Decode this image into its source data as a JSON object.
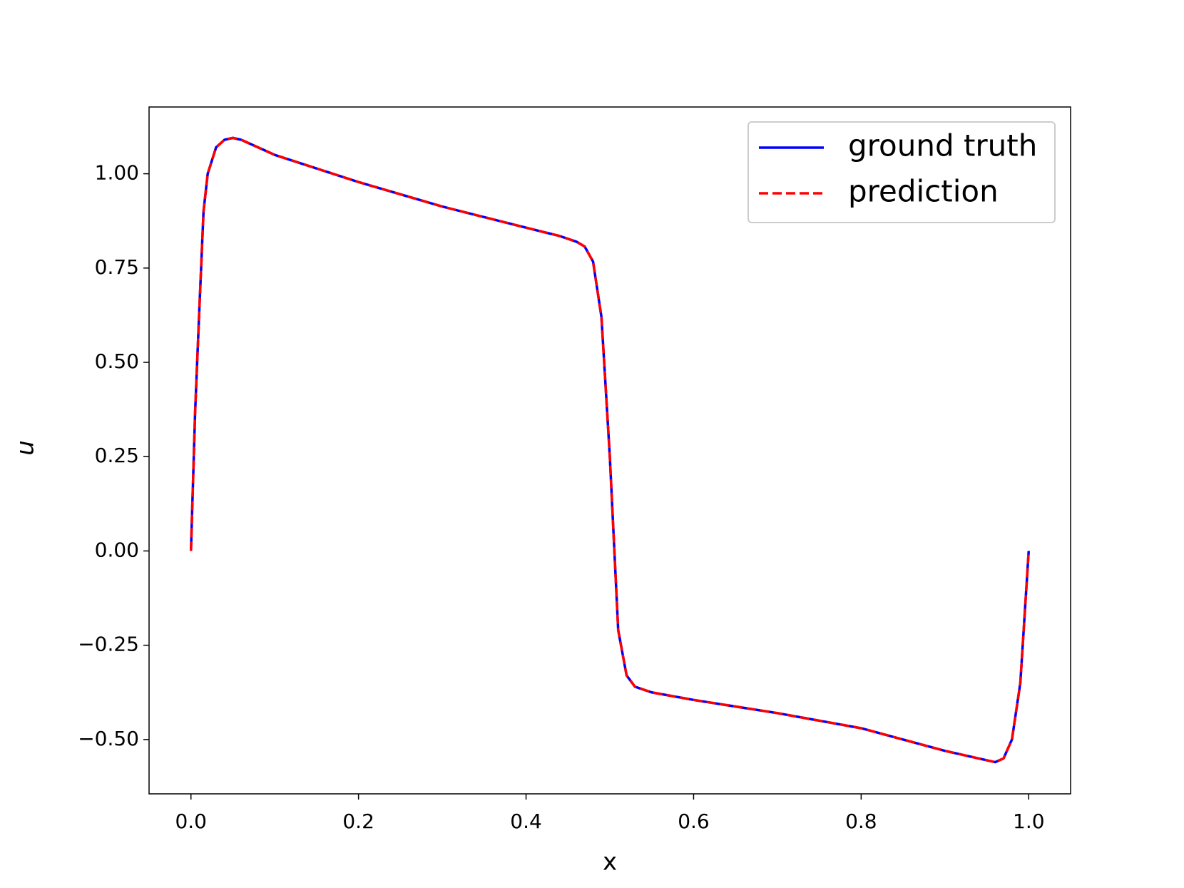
{
  "chart_data": {
    "type": "line",
    "xlabel": "x",
    "ylabel": "u",
    "x": [
      0,
      0.005,
      0.01,
      0.015,
      0.02,
      0.03,
      0.04,
      0.05,
      0.06,
      0.1,
      0.2,
      0.3,
      0.4,
      0.44,
      0.46,
      0.47,
      0.48,
      0.49,
      0.5,
      0.51,
      0.52,
      0.53,
      0.55,
      0.6,
      0.7,
      0.8,
      0.9,
      0.94,
      0.96,
      0.97,
      0.98,
      0.99,
      1.0
    ],
    "series": [
      {
        "name": "ground truth",
        "color": "#0000ff",
        "style": "solid",
        "values": [
          0,
          0.37,
          0.64,
          0.9,
          1.0,
          1.07,
          1.09,
          1.095,
          1.09,
          1.05,
          0.978,
          0.913,
          0.857,
          0.835,
          0.82,
          0.807,
          0.767,
          0.62,
          0.25,
          -0.21,
          -0.33,
          -0.36,
          -0.375,
          -0.395,
          -0.43,
          -0.47,
          -0.53,
          -0.55,
          -0.56,
          -0.55,
          -0.5,
          -0.35,
          0
        ]
      },
      {
        "name": "prediction",
        "color": "#ff0000",
        "style": "dashed",
        "values": [
          0,
          0.37,
          0.64,
          0.9,
          1.0,
          1.07,
          1.09,
          1.095,
          1.09,
          1.05,
          0.978,
          0.913,
          0.857,
          0.835,
          0.82,
          0.807,
          0.767,
          0.62,
          0.25,
          -0.21,
          -0.33,
          -0.36,
          -0.375,
          -0.395,
          -0.43,
          -0.47,
          -0.53,
          -0.55,
          -0.56,
          -0.55,
          -0.5,
          -0.35,
          0
        ]
      }
    ],
    "xlim": [
      -0.05,
      1.05
    ],
    "ylim": [
      -0.644,
      1.177
    ],
    "xticks": [
      {
        "value": 0,
        "label": "0.0"
      },
      {
        "value": 0.2,
        "label": "0.2"
      },
      {
        "value": 0.4,
        "label": "0.4"
      },
      {
        "value": 0.6,
        "label": "0.6"
      },
      {
        "value": 0.8,
        "label": "0.8"
      },
      {
        "value": 1,
        "label": "1.0"
      }
    ],
    "yticks": [
      {
        "value": -0.5,
        "label": "−0.50"
      },
      {
        "value": -0.25,
        "label": "−0.25"
      },
      {
        "value": 0,
        "label": "0.00"
      },
      {
        "value": 0.25,
        "label": "0.25"
      },
      {
        "value": 0.5,
        "label": "0.50"
      },
      {
        "value": 0.75,
        "label": "0.75"
      },
      {
        "value": 1,
        "label": "1.00"
      }
    ],
    "legend": "upper right",
    "grid": false
  }
}
